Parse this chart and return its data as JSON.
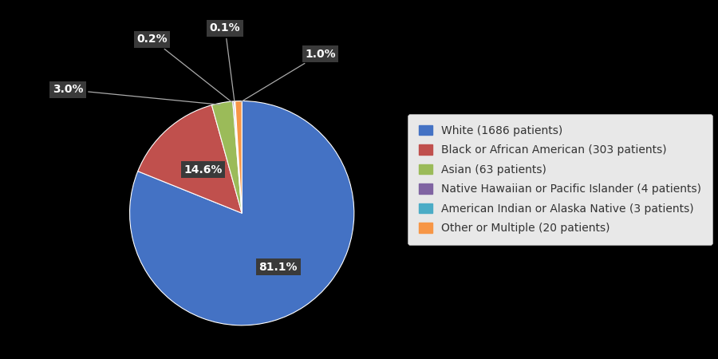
{
  "legend_labels": [
    "White (1686 patients)",
    "Black or African American (303 patients)",
    "Asian (63 patients)",
    "Native Hawaiian or Pacific Islander (4 patients)",
    "American Indian or Alaska Native (3 patients)",
    "Other or Multiple (20 patients)"
  ],
  "values": [
    1686,
    303,
    63,
    4,
    3,
    20
  ],
  "percentages": [
    "81.1%",
    "14.6%",
    "3.0%",
    "0.2%",
    "0.1%",
    "1.0%"
  ],
  "colors": [
    "#4472C4",
    "#C0504D",
    "#9BBB59",
    "#8064A2",
    "#4BACC6",
    "#F79646"
  ],
  "background_color": "#000000",
  "legend_bg_color": "#E8E8E8",
  "label_bg_color": "#3A3A3A",
  "label_text_color": "#FFFFFF",
  "startangle": 90,
  "label_fontsize": 10,
  "legend_fontsize": 10
}
